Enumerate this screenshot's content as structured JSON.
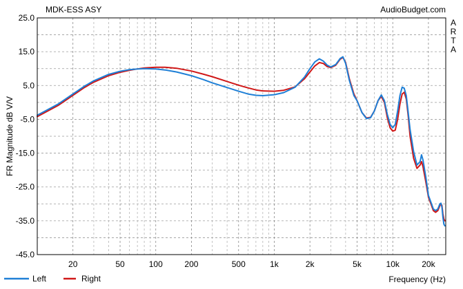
{
  "chart_data": {
    "type": "line",
    "title": "MDK-ESS ASY",
    "watermark": "AudioBudget.com",
    "side_label": "ARTA",
    "ylabel": "FR Magnitude dB V/V",
    "xlabel": "Frequency (Hz)",
    "x_scale": "log",
    "xlim": [
      10,
      28000
    ],
    "ylim": [
      -45,
      25
    ],
    "grid": true,
    "legend_position": "bottom-left",
    "y_ticks": [
      "25.0",
      "15.0",
      "5.0",
      "-5.0",
      "-15.0",
      "-25.0",
      "-35.0",
      "-45.0"
    ],
    "y_tick_values": [
      25,
      15,
      5,
      -5,
      -15,
      -25,
      -35,
      -45
    ],
    "x_ticks": [
      "20",
      "50",
      "100",
      "200",
      "500",
      "1k",
      "2k",
      "5k",
      "10k",
      "20k"
    ],
    "x_tick_values": [
      20,
      50,
      100,
      200,
      500,
      1000,
      2000,
      5000,
      10000,
      20000
    ],
    "series": [
      {
        "name": "Left",
        "color": "#1e7fd6",
        "points": [
          [
            10,
            -3.8
          ],
          [
            15,
            -0.5
          ],
          [
            20,
            2.5
          ],
          [
            25,
            4.8
          ],
          [
            30,
            6.4
          ],
          [
            40,
            8.3
          ],
          [
            50,
            9.2
          ],
          [
            60,
            9.7
          ],
          [
            70,
            9.9
          ],
          [
            80,
            10.0
          ],
          [
            100,
            9.9
          ],
          [
            120,
            9.6
          ],
          [
            150,
            9.0
          ],
          [
            200,
            7.9
          ],
          [
            250,
            6.8
          ],
          [
            300,
            5.8
          ],
          [
            400,
            4.4
          ],
          [
            500,
            3.3
          ],
          [
            600,
            2.5
          ],
          [
            700,
            2.1
          ],
          [
            800,
            2.0
          ],
          [
            1000,
            2.3
          ],
          [
            1200,
            2.9
          ],
          [
            1500,
            4.5
          ],
          [
            1800,
            7.5
          ],
          [
            2000,
            10.0
          ],
          [
            2200,
            12.0
          ],
          [
            2400,
            12.9
          ],
          [
            2600,
            12.2
          ],
          [
            2800,
            11.0
          ],
          [
            3000,
            10.5
          ],
          [
            3300,
            11.2
          ],
          [
            3600,
            13.0
          ],
          [
            3800,
            13.5
          ],
          [
            4000,
            11.5
          ],
          [
            4300,
            6.5
          ],
          [
            4700,
            2.0
          ],
          [
            5000,
            0.5
          ],
          [
            5500,
            -3.0
          ],
          [
            6000,
            -4.8
          ],
          [
            6500,
            -4.5
          ],
          [
            7000,
            -2.5
          ],
          [
            7500,
            0.5
          ],
          [
            8000,
            2.2
          ],
          [
            8500,
            0.5
          ],
          [
            9000,
            -3.5
          ],
          [
            9500,
            -6.5
          ],
          [
            10000,
            -7.5
          ],
          [
            10500,
            -6.5
          ],
          [
            11000,
            -2.5
          ],
          [
            11500,
            2.0
          ],
          [
            12000,
            4.5
          ],
          [
            12500,
            4.2
          ],
          [
            13000,
            2.0
          ],
          [
            13500,
            -3.0
          ],
          [
            14000,
            -8.0
          ],
          [
            15000,
            -14.5
          ],
          [
            16000,
            -18.5
          ],
          [
            17000,
            -17.5
          ],
          [
            17500,
            -15.5
          ],
          [
            18000,
            -17.0
          ],
          [
            19000,
            -22.0
          ],
          [
            20000,
            -27.5
          ],
          [
            21000,
            -29.5
          ],
          [
            22000,
            -31.5
          ],
          [
            23000,
            -32.0
          ],
          [
            24000,
            -31.5
          ],
          [
            25000,
            -30.0
          ],
          [
            25500,
            -29.8
          ],
          [
            26000,
            -31.0
          ],
          [
            26500,
            -34.0
          ],
          [
            27000,
            -36.0
          ],
          [
            27500,
            -36.5
          ]
        ]
      },
      {
        "name": "Right",
        "color": "#d01717",
        "points": [
          [
            10,
            -4.2
          ],
          [
            15,
            -0.9
          ],
          [
            20,
            2.1
          ],
          [
            25,
            4.4
          ],
          [
            30,
            6.0
          ],
          [
            40,
            7.9
          ],
          [
            50,
            8.9
          ],
          [
            60,
            9.5
          ],
          [
            70,
            9.9
          ],
          [
            80,
            10.2
          ],
          [
            100,
            10.4
          ],
          [
            120,
            10.4
          ],
          [
            150,
            10.1
          ],
          [
            200,
            9.3
          ],
          [
            250,
            8.4
          ],
          [
            300,
            7.6
          ],
          [
            400,
            6.2
          ],
          [
            500,
            5.1
          ],
          [
            600,
            4.3
          ],
          [
            700,
            3.7
          ],
          [
            800,
            3.4
          ],
          [
            1000,
            3.3
          ],
          [
            1200,
            3.6
          ],
          [
            1500,
            4.6
          ],
          [
            1800,
            7.0
          ],
          [
            2000,
            9.0
          ],
          [
            2200,
            10.8
          ],
          [
            2400,
            11.8
          ],
          [
            2600,
            11.5
          ],
          [
            2800,
            10.6
          ],
          [
            3000,
            10.3
          ],
          [
            3300,
            11.0
          ],
          [
            3600,
            12.8
          ],
          [
            3800,
            13.3
          ],
          [
            4000,
            11.8
          ],
          [
            4300,
            7.0
          ],
          [
            4700,
            2.5
          ],
          [
            5000,
            0.5
          ],
          [
            5500,
            -3.0
          ],
          [
            6000,
            -4.6
          ],
          [
            6500,
            -4.4
          ],
          [
            7000,
            -2.5
          ],
          [
            7500,
            0.5
          ],
          [
            8000,
            1.8
          ],
          [
            8500,
            0.0
          ],
          [
            9000,
            -4.5
          ],
          [
            9500,
            -7.5
          ],
          [
            10000,
            -8.5
          ],
          [
            10500,
            -8.2
          ],
          [
            11000,
            -5.0
          ],
          [
            11500,
            -0.5
          ],
          [
            12000,
            2.5
          ],
          [
            12500,
            3.0
          ],
          [
            13000,
            1.0
          ],
          [
            13500,
            -4.0
          ],
          [
            14000,
            -10.0
          ],
          [
            15000,
            -16.5
          ],
          [
            16000,
            -19.5
          ],
          [
            17000,
            -18.5
          ],
          [
            17500,
            -17.5
          ],
          [
            18000,
            -19.0
          ],
          [
            19000,
            -23.5
          ],
          [
            20000,
            -28.0
          ],
          [
            21000,
            -30.0
          ],
          [
            22000,
            -32.0
          ],
          [
            23000,
            -32.5
          ],
          [
            24000,
            -32.0
          ],
          [
            25000,
            -30.5
          ],
          [
            25500,
            -30.0
          ],
          [
            26000,
            -30.5
          ],
          [
            26500,
            -33.0
          ],
          [
            27000,
            -34.5
          ],
          [
            27500,
            -35.0
          ]
        ]
      }
    ]
  }
}
